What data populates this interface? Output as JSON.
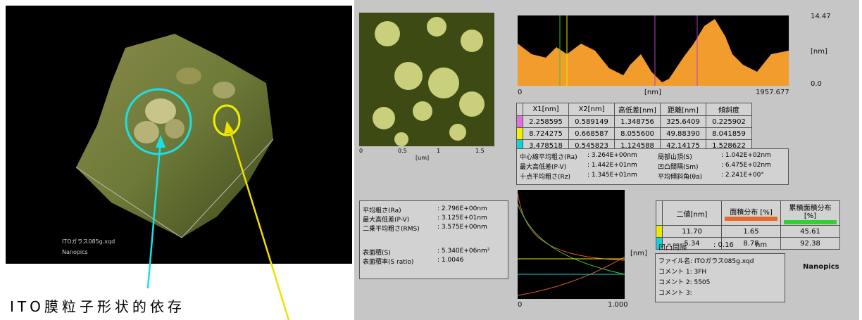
{
  "left_panel": {
    "caption": "ITO膜粒子形状的依存",
    "file_label": "ITOガラス085g.xqd",
    "brand": "Nanopics"
  },
  "image_axis": {
    "ticks": [
      "0",
      "0.5",
      "1",
      "1.5"
    ],
    "unit": "[um]"
  },
  "profile": {
    "y_max": "14.47",
    "y_unit": "[nm]",
    "y_min": "0.0",
    "x_min": "0",
    "x_unit": "[nm]",
    "x_max": "1957.677"
  },
  "section_table": {
    "headers": [
      "X1[nm]",
      "X2[nm]",
      "高低差[nm]",
      "距離[nm]",
      "傾斜度"
    ],
    "rows": [
      [
        "2.258595",
        "0.589149",
        "1.348756",
        "325.6409",
        "0.225902"
      ],
      [
        "8.724275",
        "0.668587",
        "8.055600",
        "49.88390",
        "8.041859"
      ],
      [
        "3.478518",
        "0.545823",
        "1.124588",
        "42.14175",
        "1.528622"
      ]
    ]
  },
  "roughness_box": {
    "rows": [
      [
        "中心線平均粗さ(Ra)",
        ": 3.264E+00nm",
        "局部山頂(S)",
        ": 1.042E+02nm"
      ],
      [
        "最大高低差(P-V)",
        ": 1.442E+01nm",
        "凹凸間隔(Sm)",
        ": 6.475E+02nm"
      ],
      [
        "十点平均粗さ(Rz)",
        ": 1.345E+01nm",
        "平均傾斜角(θa)",
        ": 2.241E+00°"
      ]
    ]
  },
  "area_stats": {
    "rows": [
      [
        "平均粗さ(Ra)",
        ": 2.796E+00nm"
      ],
      [
        "最大高低差(P-V)",
        ": 3.125E+01nm"
      ],
      [
        "二乗平均粗さ(RMS)",
        ": 3.575E+00nm"
      ],
      [
        "表面積(S)",
        ": 5.340E+06nm²"
      ],
      [
        "表面積率(S ratio)",
        ": 1.0046"
      ]
    ]
  },
  "histogram": {
    "unit": "[nm]",
    "x_min": "0",
    "x_max": "1.000"
  },
  "bearing_table": {
    "headers": [
      "二値[nm]",
      "面積分布 [%]",
      "累積面積分布 [%]"
    ],
    "rows": [
      [
        "11.70",
        "1.65",
        "45.61"
      ],
      [
        "5.34",
        "8.78",
        "92.38"
      ]
    ]
  },
  "spacing": {
    "label": "凹凸間隔",
    "value": ": 0.16",
    "unit": "nm"
  },
  "file_info": {
    "lines": [
      "ファイル名: ITOガラス085g.xqd",
      "コメント 1: 3FH",
      "コメント 2: 5505",
      "コメント 3:"
    ]
  },
  "brand": "Nanopics"
}
